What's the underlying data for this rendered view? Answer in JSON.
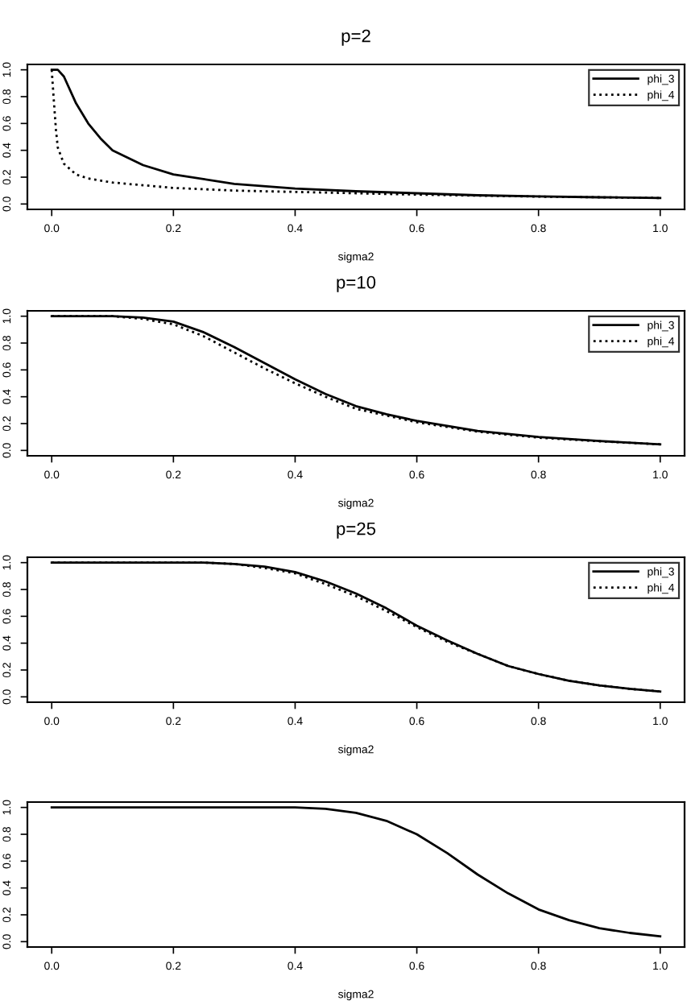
{
  "chart_data": [
    {
      "type": "line",
      "title": "p=2",
      "xlabel": "sigma2",
      "xlim": [
        -0.04,
        1.04
      ],
      "ylim": [
        -0.04,
        1.04
      ],
      "xticks": [
        {
          "value": 0,
          "label": "0.0"
        },
        {
          "value": 0.2,
          "label": "0.2"
        },
        {
          "value": 0.4,
          "label": "0.4"
        },
        {
          "value": 0.6,
          "label": "0.6"
        },
        {
          "value": 0.8,
          "label": "0.8"
        },
        {
          "value": 1,
          "label": "1.0"
        }
      ],
      "yticks": [
        {
          "value": 0,
          "label": "0.0"
        },
        {
          "value": 0.2,
          "label": "0.2"
        },
        {
          "value": 0.4,
          "label": "0.4"
        },
        {
          "value": 0.6,
          "label": "0.6"
        },
        {
          "value": 0.8,
          "label": "0.8"
        },
        {
          "value": 1,
          "label": "1.0"
        }
      ],
      "legend": "top right",
      "grid": false,
      "series": [
        {
          "name": "phi_3",
          "color": "#000000",
          "line_style": "solid",
          "x": [
            0,
            0.01,
            0.02,
            0.04,
            0.06,
            0.08,
            0.1,
            0.15,
            0.2,
            0.3,
            0.4,
            0.5,
            0.6,
            0.7,
            0.8,
            0.9,
            1.0
          ],
          "values": [
            1.0,
            1.0,
            0.95,
            0.75,
            0.6,
            0.49,
            0.4,
            0.29,
            0.22,
            0.15,
            0.115,
            0.095,
            0.08,
            0.065,
            0.057,
            0.05,
            0.045
          ]
        },
        {
          "name": "phi_4",
          "color": "#000000",
          "line_style": "dotted",
          "x": [
            0,
            0.003,
            0.007,
            0.01,
            0.02,
            0.04,
            0.06,
            0.1,
            0.2,
            0.3,
            0.4,
            0.6,
            0.8,
            1.0
          ],
          "values": [
            1.0,
            0.8,
            0.55,
            0.42,
            0.3,
            0.22,
            0.19,
            0.16,
            0.12,
            0.1,
            0.09,
            0.07,
            0.055,
            0.045
          ]
        }
      ]
    },
    {
      "type": "line",
      "title": "p=10",
      "xlabel": "sigma2",
      "xlim": [
        -0.04,
        1.04
      ],
      "ylim": [
        -0.04,
        1.04
      ],
      "xticks": [
        {
          "value": 0,
          "label": "0.0"
        },
        {
          "value": 0.2,
          "label": "0.2"
        },
        {
          "value": 0.4,
          "label": "0.4"
        },
        {
          "value": 0.6,
          "label": "0.6"
        },
        {
          "value": 0.8,
          "label": "0.8"
        },
        {
          "value": 1,
          "label": "1.0"
        }
      ],
      "yticks": [
        {
          "value": 0,
          "label": "0.0"
        },
        {
          "value": 0.2,
          "label": "0.2"
        },
        {
          "value": 0.4,
          "label": "0.4"
        },
        {
          "value": 0.6,
          "label": "0.6"
        },
        {
          "value": 0.8,
          "label": "0.8"
        },
        {
          "value": 1,
          "label": "1.0"
        }
      ],
      "legend": "top right",
      "grid": false,
      "series": [
        {
          "name": "phi_3",
          "color": "#000000",
          "line_style": "solid",
          "x": [
            0,
            0.1,
            0.15,
            0.2,
            0.25,
            0.3,
            0.35,
            0.4,
            0.45,
            0.5,
            0.55,
            0.6,
            0.7,
            0.8,
            0.9,
            1.0
          ],
          "values": [
            1.0,
            1.0,
            0.99,
            0.96,
            0.88,
            0.77,
            0.65,
            0.53,
            0.42,
            0.33,
            0.27,
            0.22,
            0.145,
            0.1,
            0.07,
            0.045
          ]
        },
        {
          "name": "phi_4",
          "color": "#000000",
          "line_style": "dotted",
          "x": [
            0,
            0.1,
            0.15,
            0.2,
            0.25,
            0.3,
            0.35,
            0.4,
            0.45,
            0.5,
            0.55,
            0.6,
            0.7,
            0.8,
            0.9,
            1.0
          ],
          "values": [
            1.0,
            1.0,
            0.98,
            0.94,
            0.85,
            0.73,
            0.61,
            0.5,
            0.4,
            0.31,
            0.26,
            0.21,
            0.14,
            0.095,
            0.068,
            0.045
          ]
        }
      ]
    },
    {
      "type": "line",
      "title": "p=25",
      "xlabel": "sigma2",
      "xlim": [
        -0.04,
        1.04
      ],
      "ylim": [
        -0.04,
        1.04
      ],
      "xticks": [
        {
          "value": 0,
          "label": "0.0"
        },
        {
          "value": 0.2,
          "label": "0.2"
        },
        {
          "value": 0.4,
          "label": "0.4"
        },
        {
          "value": 0.6,
          "label": "0.6"
        },
        {
          "value": 0.8,
          "label": "0.8"
        },
        {
          "value": 1,
          "label": "1.0"
        }
      ],
      "yticks": [
        {
          "value": 0,
          "label": "0.0"
        },
        {
          "value": 0.2,
          "label": "0.2"
        },
        {
          "value": 0.4,
          "label": "0.4"
        },
        {
          "value": 0.6,
          "label": "0.6"
        },
        {
          "value": 0.8,
          "label": "0.8"
        },
        {
          "value": 1,
          "label": "1.0"
        }
      ],
      "legend": "top right",
      "grid": false,
      "series": [
        {
          "name": "phi_3",
          "color": "#000000",
          "line_style": "solid",
          "x": [
            0,
            0.25,
            0.3,
            0.35,
            0.4,
            0.45,
            0.5,
            0.55,
            0.6,
            0.65,
            0.7,
            0.75,
            0.8,
            0.85,
            0.9,
            0.95,
            1.0
          ],
          "values": [
            1.0,
            1.0,
            0.99,
            0.97,
            0.93,
            0.86,
            0.77,
            0.66,
            0.53,
            0.42,
            0.32,
            0.23,
            0.17,
            0.12,
            0.085,
            0.06,
            0.04
          ]
        },
        {
          "name": "phi_4",
          "color": "#000000",
          "line_style": "dotted",
          "x": [
            0,
            0.25,
            0.3,
            0.35,
            0.4,
            0.45,
            0.5,
            0.55,
            0.6,
            0.65,
            0.7,
            0.75,
            0.8,
            0.85,
            0.9,
            0.95,
            1.0
          ],
          "values": [
            1.0,
            1.0,
            0.99,
            0.96,
            0.92,
            0.84,
            0.75,
            0.64,
            0.52,
            0.41,
            0.32,
            0.23,
            0.17,
            0.12,
            0.085,
            0.06,
            0.04
          ]
        }
      ]
    },
    {
      "type": "line",
      "xlabel": "sigma2",
      "xlim": [
        -0.04,
        1.04
      ],
      "ylim": [
        -0.04,
        1.04
      ],
      "xticks": [
        {
          "value": 0,
          "label": "0.0"
        },
        {
          "value": 0.2,
          "label": "0.2"
        },
        {
          "value": 0.4,
          "label": "0.4"
        },
        {
          "value": 0.6,
          "label": "0.6"
        },
        {
          "value": 0.8,
          "label": "0.8"
        },
        {
          "value": 1,
          "label": "1.0"
        }
      ],
      "yticks": [
        {
          "value": 0,
          "label": "0.0"
        },
        {
          "value": 0.2,
          "label": "0.2"
        },
        {
          "value": 0.4,
          "label": "0.4"
        },
        {
          "value": 0.6,
          "label": "0.6"
        },
        {
          "value": 0.8,
          "label": "0.8"
        },
        {
          "value": 1,
          "label": "1.0"
        }
      ],
      "grid": false,
      "series": [
        {
          "color": "#000000",
          "line_style": "solid",
          "x": [
            0,
            0.4,
            0.45,
            0.5,
            0.55,
            0.6,
            0.65,
            0.7,
            0.75,
            0.8,
            0.85,
            0.9,
            0.95,
            1.0
          ],
          "values": [
            1.0,
            1.0,
            0.99,
            0.96,
            0.9,
            0.8,
            0.66,
            0.5,
            0.36,
            0.24,
            0.16,
            0.1,
            0.065,
            0.04
          ]
        }
      ]
    }
  ]
}
